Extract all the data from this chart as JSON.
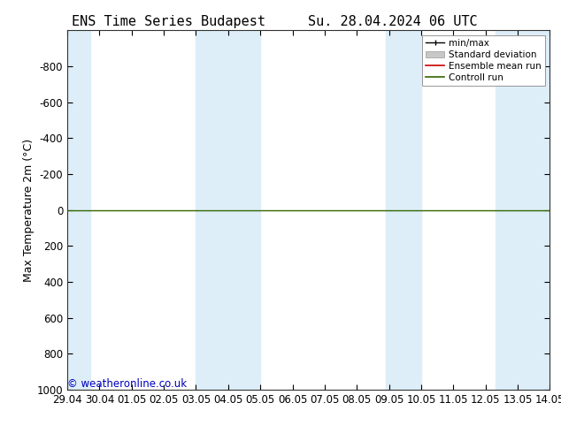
{
  "title_left": "ENS Time Series Budapest",
  "title_right": "Su. 28.04.2024 06 UTC",
  "ylabel": "Max Temperature 2m (°C)",
  "ylim": [
    1000,
    -1000
  ],
  "yticks": [
    -800,
    -600,
    -400,
    -200,
    0,
    200,
    400,
    600,
    800,
    1000
  ],
  "xtick_labels": [
    "29.04",
    "30.04",
    "01.05",
    "02.05",
    "03.05",
    "04.05",
    "05.05",
    "06.05",
    "07.05",
    "08.05",
    "09.05",
    "10.05",
    "11.05",
    "12.05",
    "13.05",
    "14.05"
  ],
  "xtick_positions": [
    0,
    1,
    2,
    3,
    4,
    5,
    6,
    7,
    8,
    9,
    10,
    11,
    12,
    13,
    14,
    15
  ],
  "xlim": [
    0,
    15
  ],
  "shaded_bands": [
    [
      -0.1,
      0.7
    ],
    [
      4.0,
      6.0
    ],
    [
      9.9,
      11.0
    ],
    [
      13.3,
      15.1
    ]
  ],
  "shaded_color": "#ddeef8",
  "control_run_y": 0,
  "control_run_color": "#336600",
  "ensemble_mean_color": "#cc0000",
  "std_dev_color": "#c8c8c8",
  "minmax_color": "#000000",
  "background_color": "#ffffff",
  "plot_bg_color": "#ffffff",
  "watermark": "© weatheronline.co.uk",
  "watermark_color": "#0000bb",
  "legend_labels": [
    "min/max",
    "Standard deviation",
    "Ensemble mean run",
    "Controll run"
  ],
  "title_fontsize": 11,
  "tick_fontsize": 8.5,
  "ylabel_fontsize": 9
}
